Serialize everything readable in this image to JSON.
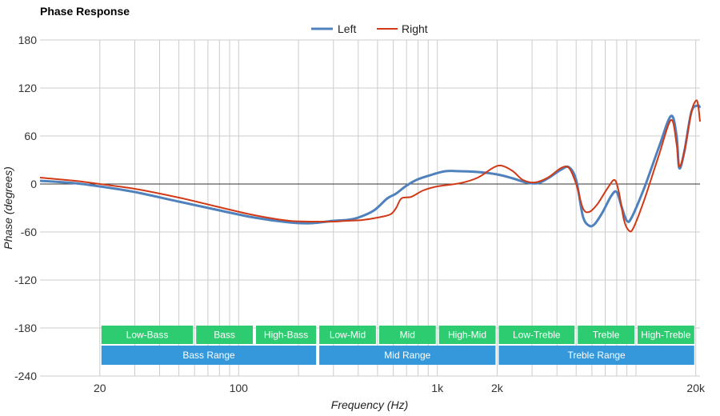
{
  "chart_data": {
    "type": "line",
    "title": "Phase Response",
    "xlabel": "Frequency (Hz)",
    "ylabel": "Phase (degrees)",
    "x_scale": "log",
    "xlim": [
      10,
      21000
    ],
    "ylim": [
      -240,
      180
    ],
    "grid": true,
    "legend": "top-center",
    "x_ticks": [
      {
        "value": 20,
        "label": "20"
      },
      {
        "value": 100,
        "label": "100"
      },
      {
        "value": 1000,
        "label": "1k"
      },
      {
        "value": 2000,
        "label": "2k"
      },
      {
        "value": 20000,
        "label": "20k"
      }
    ],
    "y_ticks": [
      {
        "value": 180,
        "label": "180"
      },
      {
        "value": 120,
        "label": "120"
      },
      {
        "value": 60,
        "label": "60"
      },
      {
        "value": 0,
        "label": "0"
      },
      {
        "value": -60,
        "label": "-60"
      },
      {
        "value": -120,
        "label": "-120"
      },
      {
        "value": -180,
        "label": "-180"
      },
      {
        "value": -240,
        "label": "-240"
      }
    ],
    "series": [
      {
        "name": "Left",
        "color": "#4f81bd",
        "points": [
          [
            10,
            4
          ],
          [
            15,
            1
          ],
          [
            20,
            -3
          ],
          [
            30,
            -10
          ],
          [
            50,
            -22
          ],
          [
            80,
            -33
          ],
          [
            120,
            -42
          ],
          [
            180,
            -48
          ],
          [
            230,
            -49
          ],
          [
            300,
            -46
          ],
          [
            350,
            -45
          ],
          [
            400,
            -42
          ],
          [
            480,
            -33
          ],
          [
            560,
            -18
          ],
          [
            620,
            -12
          ],
          [
            700,
            -2
          ],
          [
            800,
            6
          ],
          [
            950,
            12
          ],
          [
            1100,
            16
          ],
          [
            1300,
            16
          ],
          [
            1600,
            15
          ],
          [
            2000,
            12
          ],
          [
            2400,
            7
          ],
          [
            2800,
            2
          ],
          [
            3200,
            1
          ],
          [
            3600,
            7
          ],
          [
            4200,
            18
          ],
          [
            4600,
            21
          ],
          [
            5000,
            5
          ],
          [
            5400,
            -40
          ],
          [
            5800,
            -52
          ],
          [
            6200,
            -50
          ],
          [
            6800,
            -35
          ],
          [
            7500,
            -15
          ],
          [
            8000,
            -10
          ],
          [
            8500,
            -30
          ],
          [
            9000,
            -46
          ],
          [
            9500,
            -42
          ],
          [
            11000,
            -5
          ],
          [
            13000,
            45
          ],
          [
            15000,
            85
          ],
          [
            16000,
            60
          ],
          [
            16500,
            20
          ],
          [
            17500,
            40
          ],
          [
            19000,
            90
          ],
          [
            20500,
            98
          ],
          [
            21000,
            95
          ]
        ]
      },
      {
        "name": "Right",
        "color": "#d03a17",
        "points": [
          [
            10,
            8
          ],
          [
            15,
            4
          ],
          [
            20,
            0
          ],
          [
            30,
            -6
          ],
          [
            50,
            -17
          ],
          [
            80,
            -29
          ],
          [
            120,
            -39
          ],
          [
            180,
            -46
          ],
          [
            250,
            -47
          ],
          [
            300,
            -47
          ],
          [
            350,
            -46
          ],
          [
            420,
            -45
          ],
          [
            500,
            -42
          ],
          [
            580,
            -38
          ],
          [
            620,
            -30
          ],
          [
            660,
            -18
          ],
          [
            740,
            -16
          ],
          [
            850,
            -8
          ],
          [
            1000,
            -3
          ],
          [
            1300,
            1
          ],
          [
            1600,
            8
          ],
          [
            1900,
            20
          ],
          [
            2100,
            23
          ],
          [
            2400,
            16
          ],
          [
            2700,
            5
          ],
          [
            3100,
            2
          ],
          [
            3600,
            8
          ],
          [
            4200,
            20
          ],
          [
            4600,
            20
          ],
          [
            5000,
            0
          ],
          [
            5400,
            -30
          ],
          [
            5800,
            -35
          ],
          [
            6400,
            -25
          ],
          [
            7200,
            -5
          ],
          [
            7800,
            5
          ],
          [
            8200,
            -10
          ],
          [
            8700,
            -45
          ],
          [
            9200,
            -58
          ],
          [
            9700,
            -55
          ],
          [
            11000,
            -20
          ],
          [
            13000,
            35
          ],
          [
            15000,
            80
          ],
          [
            16000,
            50
          ],
          [
            16500,
            22
          ],
          [
            17500,
            40
          ],
          [
            19000,
            90
          ],
          [
            20000,
            104
          ],
          [
            20500,
            100
          ],
          [
            21000,
            78
          ]
        ]
      }
    ],
    "bands": [
      {
        "label": "Low-Bass",
        "start": 20,
        "end": 60,
        "row": 1,
        "color": "#2ecc71"
      },
      {
        "label": "Bass",
        "start": 60,
        "end": 120,
        "row": 1,
        "color": "#2ecc71"
      },
      {
        "label": "High-Bass",
        "start": 120,
        "end": 250,
        "row": 1,
        "color": "#2ecc71"
      },
      {
        "label": "Low-Mid",
        "start": 250,
        "end": 500,
        "row": 1,
        "color": "#2ecc71"
      },
      {
        "label": "Mid",
        "start": 500,
        "end": 1000,
        "row": 1,
        "color": "#2ecc71"
      },
      {
        "label": "High-Mid",
        "start": 1000,
        "end": 2000,
        "row": 1,
        "color": "#2ecc71"
      },
      {
        "label": "Low-Treble",
        "start": 2000,
        "end": 5000,
        "row": 1,
        "color": "#2ecc71"
      },
      {
        "label": "Treble",
        "start": 5000,
        "end": 10000,
        "row": 1,
        "color": "#2ecc71"
      },
      {
        "label": "High-Treble",
        "start": 10000,
        "end": 20000,
        "row": 1,
        "color": "#2ecc71"
      },
      {
        "label": "Bass Range",
        "start": 20,
        "end": 250,
        "row": 2,
        "color": "#3498db"
      },
      {
        "label": "Mid Range",
        "start": 250,
        "end": 2000,
        "row": 2,
        "color": "#3498db"
      },
      {
        "label": "Treble Range",
        "start": 2000,
        "end": 20000,
        "row": 2,
        "color": "#3498db"
      }
    ]
  }
}
